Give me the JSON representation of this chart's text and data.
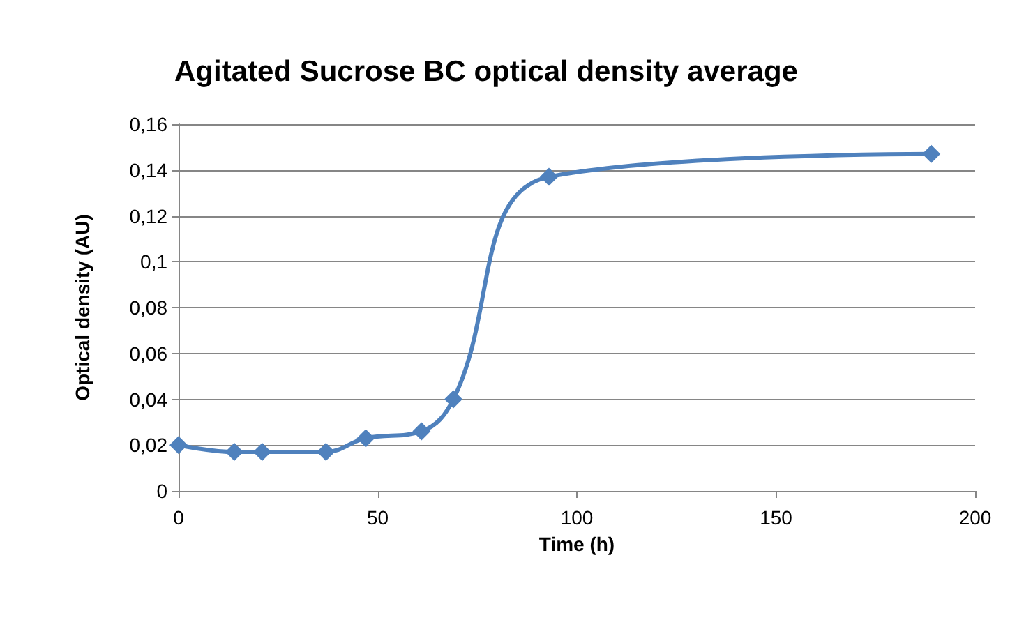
{
  "chart_data": {
    "type": "line",
    "title": "Agitated Sucrose BC optical density average",
    "xlabel": "Time (h)",
    "ylabel": "Optical density (AU)",
    "x": [
      0,
      14,
      21,
      37,
      47,
      61,
      69,
      93,
      189
    ],
    "series": [
      {
        "color": "#4f81bd",
        "values": [
          0.02,
          0.017,
          0.017,
          0.017,
          0.023,
          0.026,
          0.04,
          0.137,
          0.147
        ]
      }
    ],
    "xlim": [
      0,
      200
    ],
    "xticks": [
      0,
      50,
      100,
      150,
      200
    ],
    "ylim": [
      0,
      0.16
    ],
    "yticks": [
      {
        "value": 0,
        "label": "0"
      },
      {
        "value": 0.02,
        "label": "0,02"
      },
      {
        "value": 0.04,
        "label": "0,04"
      },
      {
        "value": 0.06,
        "label": "0,06"
      },
      {
        "value": 0.08,
        "label": "0,08"
      },
      {
        "value": 0.1,
        "label": "0,1"
      },
      {
        "value": 0.12,
        "label": "0,12"
      },
      {
        "value": 0.14,
        "label": "0,14"
      },
      {
        "value": 0.16,
        "label": "0,16"
      }
    ],
    "grid": "y",
    "marker": "diamond",
    "line_style": "solid"
  }
}
